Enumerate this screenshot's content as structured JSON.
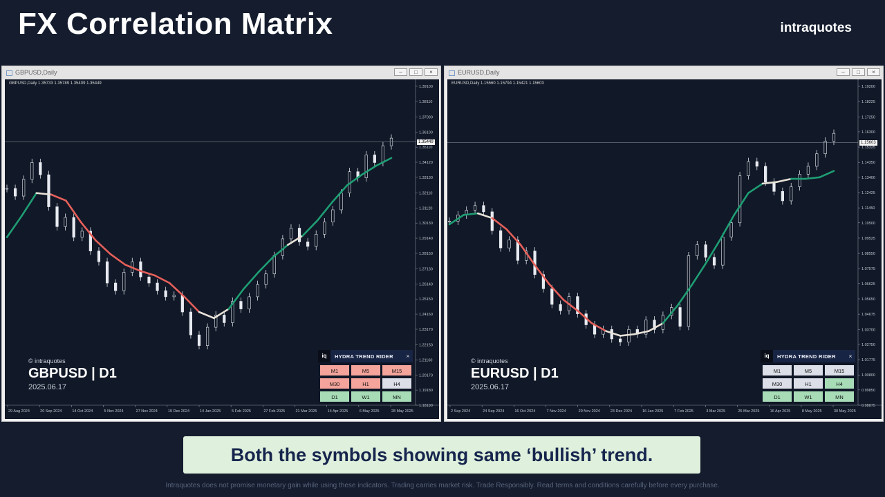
{
  "header": {
    "title": "FX Correlation Matrix",
    "brand": "intraquotes"
  },
  "caption": "Both the symbols showing same ‘bullish’ trend.",
  "disclaimer": "Intraquotes does not promise monetary gain while using these indicators. Trading carries market risk. Trade Responsibly. Read terms and conditions carefully before every purchase.",
  "colors": {
    "bull": "#1e9e74",
    "bear": "#e5605a",
    "neutral": "#e8e2d8",
    "cell_red": "#f4a49b",
    "cell_green": "#a7dcb7",
    "cell_neutral": "#dcdfe8"
  },
  "windows": [
    {
      "title": "GBPUSD,Daily",
      "ohlc": "GBPUSD,Daily  1.35733 1.35789 1.35409 1.35449",
      "watermark": "© intraquotes",
      "symbol": "GBPUSD | D1",
      "date": "2025.06.17",
      "current_price": "1.35449",
      "price_ticks": [
        "1.39100",
        "1.38110",
        "1.37090",
        "1.36100",
        "1.35110",
        "1.34120",
        "1.33130",
        "1.32110",
        "1.31120",
        "1.30130",
        "1.29140",
        "1.28150",
        "1.27130",
        "1.26140",
        "1.25150",
        "1.24160",
        "1.23170",
        "1.22150",
        "1.21160",
        "1.20170",
        "1.19180",
        "1.18190"
      ],
      "date_ticks": [
        "29 Aug 2024",
        "20 Sep 2024",
        "14 Oct 2024",
        "5 Nov 2024",
        "27 Nov 2024",
        "19 Dec 2024",
        "14 Jan 2025",
        "5 Feb 2025",
        "27 Feb 2025",
        "21 Mar 2025",
        "14 Apr 2025",
        "6 May 2025",
        "28 May 2025"
      ],
      "close_series": [
        1.324,
        1.319,
        1.33,
        1.341,
        1.333,
        1.312,
        1.299,
        1.305,
        1.292,
        1.296,
        1.283,
        1.276,
        1.262,
        1.257,
        1.269,
        1.276,
        1.266,
        1.262,
        1.257,
        1.253,
        1.254,
        1.243,
        1.228,
        1.221,
        1.233,
        1.241,
        1.236,
        1.25,
        1.245,
        1.253,
        1.261,
        1.268,
        1.28,
        1.291,
        1.298,
        1.289,
        1.286,
        1.294,
        1.302,
        1.31,
        1.321,
        1.335,
        1.331,
        1.346,
        1.341,
        1.352,
        1.357
      ],
      "trend_series": [
        1.292,
        1.306,
        1.321,
        1.32,
        1.316,
        1.302,
        1.29,
        1.281,
        1.274,
        1.27,
        1.267,
        1.262,
        1.253,
        1.243,
        1.239,
        1.245,
        1.258,
        1.269,
        1.279,
        1.287,
        1.293,
        1.303,
        1.315,
        1.326,
        1.333,
        1.339,
        1.344
      ],
      "trend_states": [
        "bull",
        "bull",
        "neutral",
        "bear",
        "bear",
        "bear",
        "bear",
        "bear",
        "bear",
        "bear",
        "bear",
        "bear",
        "bear",
        "neutral",
        "neutral",
        "bull",
        "bull",
        "bull",
        "bull",
        "neutral",
        "bull",
        "bull",
        "bull",
        "bull",
        "bull",
        "bull",
        "bull"
      ],
      "indicator": {
        "logo": "iq",
        "title": "HYDRA TREND RIDER",
        "close": "×",
        "cells": [
          {
            "label": "M1",
            "state": "red"
          },
          {
            "label": "M5",
            "state": "red"
          },
          {
            "label": "M15",
            "state": "red"
          },
          {
            "label": "M30",
            "state": "red"
          },
          {
            "label": "H1",
            "state": "red"
          },
          {
            "label": "H4",
            "state": "neutral"
          },
          {
            "label": "D1",
            "state": "green"
          },
          {
            "label": "W1",
            "state": "green"
          },
          {
            "label": "MN",
            "state": "green"
          }
        ]
      }
    },
    {
      "title": "EURUSD,Daily",
      "ohlc": "EURUSD,Daily  1.15560 1.15794 1.15421 1.15603",
      "watermark": "© intraquotes",
      "symbol": "EURUSD | D1",
      "date": "2025.06.17",
      "current_price": "1.15603",
      "price_ticks": [
        "1.19200",
        "1.18225",
        "1.17250",
        "1.16300",
        "1.15325",
        "1.14350",
        "1.13400",
        "1.12425",
        "1.11450",
        "1.10500",
        "1.09525",
        "1.08550",
        "1.07575",
        "1.06625",
        "1.05650",
        "1.04675",
        "1.03700",
        "1.02750",
        "1.01775",
        "1.00800",
        "0.99850",
        "0.98875"
      ],
      "date_ticks": [
        "2 Sep 2024",
        "24 Sep 2024",
        "16 Oct 2024",
        "7 Nov 2024",
        "29 Nov 2024",
        "23 Dec 2024",
        "16 Jan 2025",
        "7 Feb 2025",
        "3 Mar 2025",
        "25 Mar 2025",
        "16 Apr 2025",
        "8 May 2025",
        "30 May 2025"
      ],
      "close_series": [
        1.106,
        1.11,
        1.113,
        1.116,
        1.112,
        1.1,
        1.089,
        1.094,
        1.081,
        1.087,
        1.072,
        1.063,
        1.053,
        1.049,
        1.058,
        1.047,
        1.04,
        1.034,
        1.037,
        1.031,
        1.029,
        1.037,
        1.034,
        1.043,
        1.037,
        1.046,
        1.051,
        1.039,
        1.084,
        1.091,
        1.083,
        1.078,
        1.096,
        1.105,
        1.135,
        1.144,
        1.141,
        1.131,
        1.125,
        1.119,
        1.128,
        1.136,
        1.141,
        1.149,
        1.157,
        1.162
      ],
      "trend_series": [
        1.104,
        1.11,
        1.111,
        1.108,
        1.101,
        1.091,
        1.078,
        1.066,
        1.056,
        1.049,
        1.041,
        1.036,
        1.033,
        1.034,
        1.036,
        1.041,
        1.052,
        1.065,
        1.079,
        1.094,
        1.11,
        1.124,
        1.13,
        1.131,
        1.133,
        1.133,
        1.134,
        1.138
      ],
      "trend_states": [
        "bull",
        "bull",
        "neutral",
        "bear",
        "bear",
        "bear",
        "bear",
        "bear",
        "bear",
        "bear",
        "bear",
        "neutral",
        "neutral",
        "neutral",
        "neutral",
        "bull",
        "bull",
        "bull",
        "bull",
        "bull",
        "bull",
        "bull",
        "neutral",
        "neutral",
        "bull",
        "bull",
        "bull",
        "bull"
      ],
      "indicator": {
        "logo": "iq",
        "title": "HYDRA TREND RIDER",
        "close": "×",
        "cells": [
          {
            "label": "M1",
            "state": "neutral"
          },
          {
            "label": "M5",
            "state": "neutral"
          },
          {
            "label": "M15",
            "state": "neutral"
          },
          {
            "label": "M30",
            "state": "neutral"
          },
          {
            "label": "H1",
            "state": "neutral"
          },
          {
            "label": "H4",
            "state": "green"
          },
          {
            "label": "D1",
            "state": "green"
          },
          {
            "label": "W1",
            "state": "green"
          },
          {
            "label": "MN",
            "state": "green"
          }
        ]
      }
    }
  ]
}
